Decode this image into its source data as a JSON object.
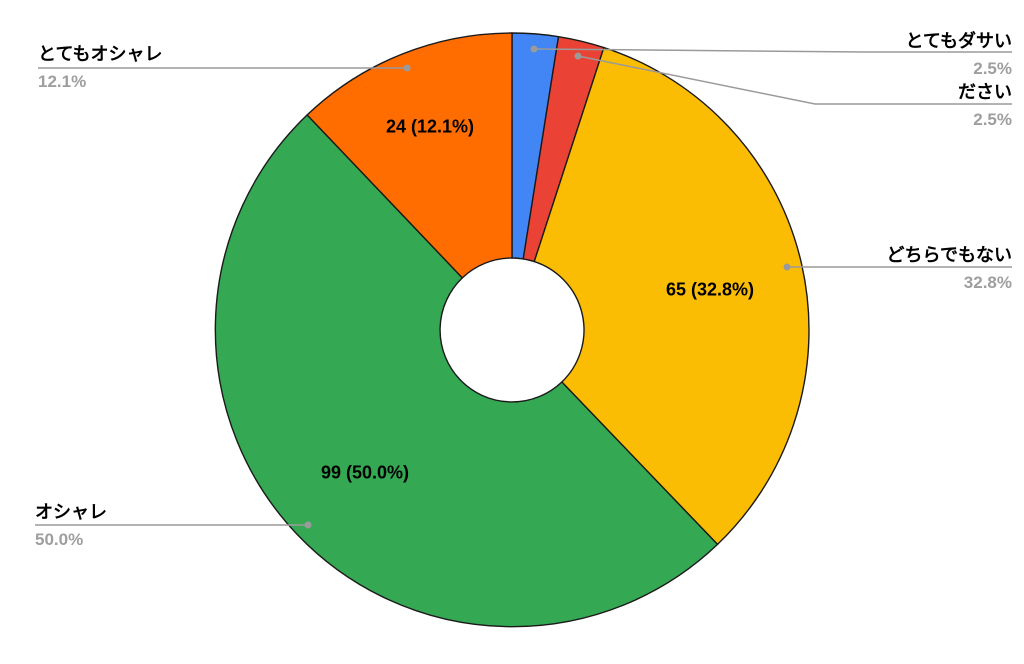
{
  "chart_data": {
    "type": "pie",
    "subtype": "donut",
    "title": "",
    "start_angle_deg": 0,
    "direction": "clockwise",
    "donut_hole_ratio": 0.24,
    "legend_position": "none",
    "grid": false,
    "slices": [
      {
        "label": "とてもダサい",
        "percent": 2.5,
        "percent_label": "2.5%",
        "color": "#4285F4"
      },
      {
        "label": "ださい",
        "percent": 2.5,
        "percent_label": "2.5%",
        "color": "#EA4335"
      },
      {
        "label": "どちらでもない",
        "percent": 32.8,
        "percent_label": "32.8%",
        "count": 65,
        "inner_label": "65 (32.8%)",
        "color": "#FBBC04"
      },
      {
        "label": "オシャレ",
        "percent": 50.0,
        "percent_label": "50.0%",
        "count": 99,
        "inner_label": "99 (50.0%)",
        "color": "#34A853"
      },
      {
        "label": "とてもオシャレ",
        "percent": 12.1,
        "percent_label": "12.1%",
        "count": 24,
        "inner_label": "24 (12.1%)",
        "color": "#FF6D01"
      }
    ]
  },
  "colors": {
    "background": "#ffffff",
    "slice_outline": "#1a1a1a",
    "leader_line": "#9a9a9a",
    "leader_dot": "#9a9a9a",
    "category_text": "#000000",
    "percent_text": "#9e9e9e",
    "inner_label_text": "#000000"
  }
}
